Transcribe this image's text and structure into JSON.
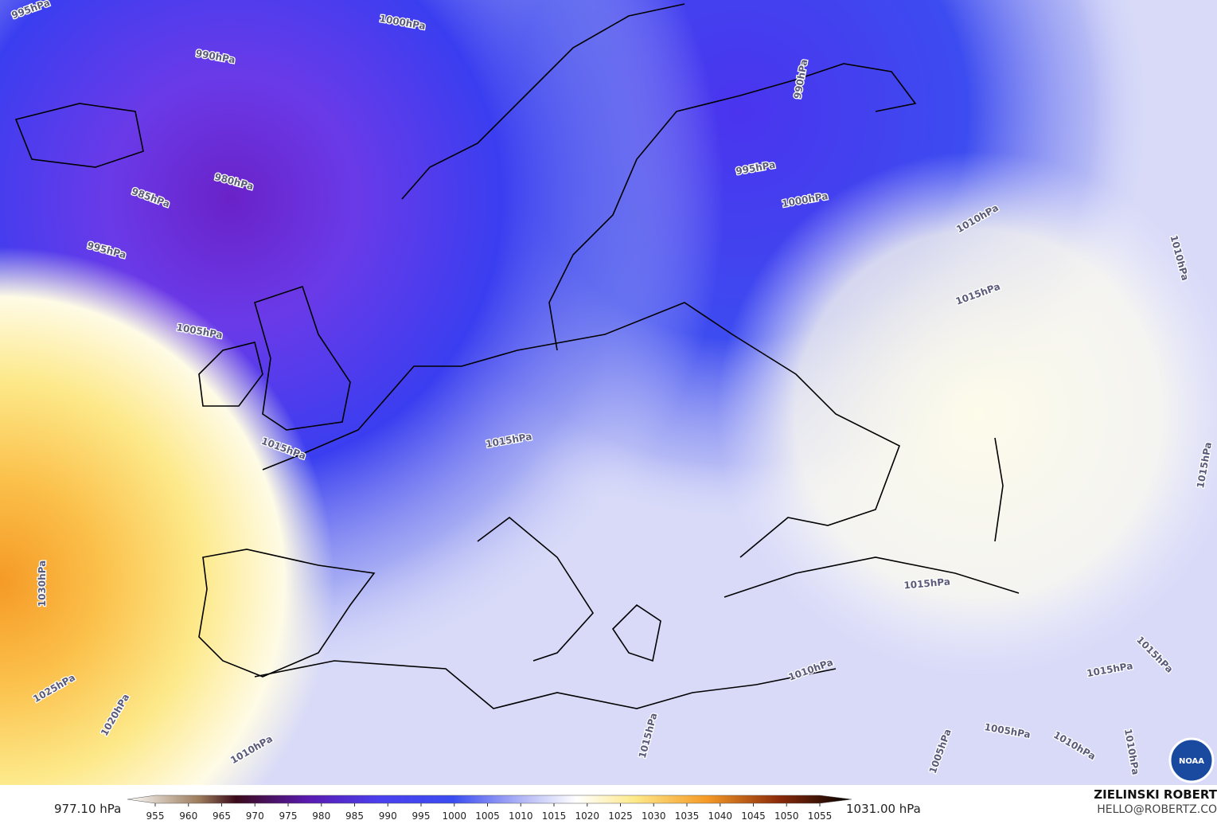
{
  "map": {
    "isobar_labels": [
      "995hPa",
      "1000hPa",
      "990hPa",
      "980hPa",
      "985hPa",
      "995hPa",
      "1005hPa",
      "990hPa",
      "995hPa",
      "1000hPa",
      "1010hPa",
      "1015hPa",
      "1010hPa",
      "1015hPa",
      "1015hPa",
      "1030hPa",
      "1025hPa",
      "1020hPa",
      "1015hPa",
      "1010hPa",
      "1015hPa",
      "1015hPa",
      "1010hPa",
      "1015hPa",
      "1005hPa",
      "1005hPa",
      "1010hPa",
      "1010hPa",
      "1015hPa"
    ],
    "logo": "NOAA"
  },
  "colorbar": {
    "min_label": "977.10 hPa",
    "max_label": "1031.00 hPa",
    "ticks": [
      955,
      960,
      965,
      970,
      975,
      980,
      985,
      990,
      995,
      1000,
      1005,
      1010,
      1015,
      1020,
      1025,
      1030,
      1035,
      1040,
      1045,
      1050,
      1055
    ]
  },
  "credit": {
    "name": "ZIELINSKI ROBERT",
    "email": "HELLO@ROBERTZ.CO"
  }
}
